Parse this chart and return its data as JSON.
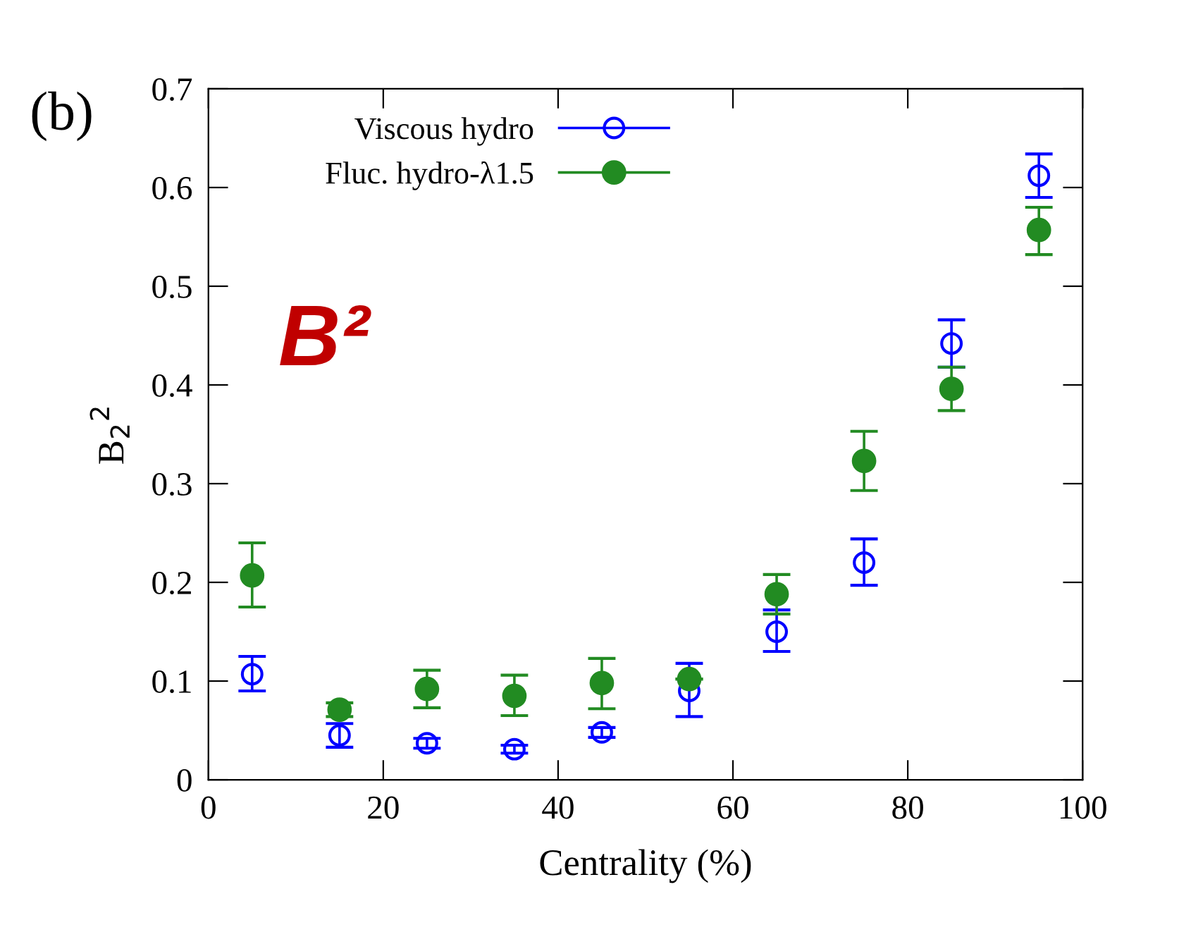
{
  "chart_data": {
    "type": "scatter",
    "xlabel": "Centrality (%)",
    "ylabel": "B$_{2}$$^{2}$",
    "annotations": [
      "(b)",
      "B²"
    ],
    "x": [
      5,
      15,
      25,
      35,
      45,
      55,
      65,
      75,
      85,
      95
    ],
    "series": [
      {
        "name": "Viscous hydro",
        "color": "#0000ff",
        "marker": "circle",
        "values": [
          0.107,
          0.045,
          0.037,
          0.031,
          0.048,
          0.09,
          0.15,
          0.22,
          0.442,
          0.612
        ],
        "errors": [
          [
            0.09,
            0.125
          ],
          [
            0.033,
            0.057
          ],
          [
            0.032,
            0.042
          ],
          [
            0.027,
            0.035
          ],
          [
            0.043,
            0.053
          ],
          [
            0.064,
            0.118
          ],
          [
            0.13,
            0.172
          ],
          [
            0.197,
            0.244
          ],
          [
            0.418,
            0.466
          ],
          [
            0.59,
            0.634
          ]
        ]
      },
      {
        "name": "Fluc. hydro-λ1.5",
        "color": "#228b22",
        "marker": "circle",
        "values": [
          0.207,
          0.071,
          0.092,
          0.085,
          0.098,
          0.102,
          0.188,
          0.323,
          0.396,
          0.557
        ],
        "errors": [
          [
            0.175,
            0.24
          ],
          [
            0.064,
            0.078
          ],
          [
            0.073,
            0.111
          ],
          [
            0.065,
            0.106
          ],
          [
            0.072,
            0.123
          ],
          null,
          [
            0.168,
            0.208
          ],
          [
            0.293,
            0.353
          ],
          [
            0.374,
            0.418
          ],
          [
            0.532,
            0.58
          ]
        ]
      }
    ],
    "xlim": [
      0,
      100
    ],
    "xticks": [
      0,
      20,
      40,
      60,
      80,
      100
    ],
    "ylim": [
      0,
      0.7
    ],
    "yticks": [
      0,
      0.1,
      0.2,
      0.3,
      0.4,
      0.5,
      0.6,
      0.7
    ],
    "grid": false,
    "legend": "top"
  }
}
